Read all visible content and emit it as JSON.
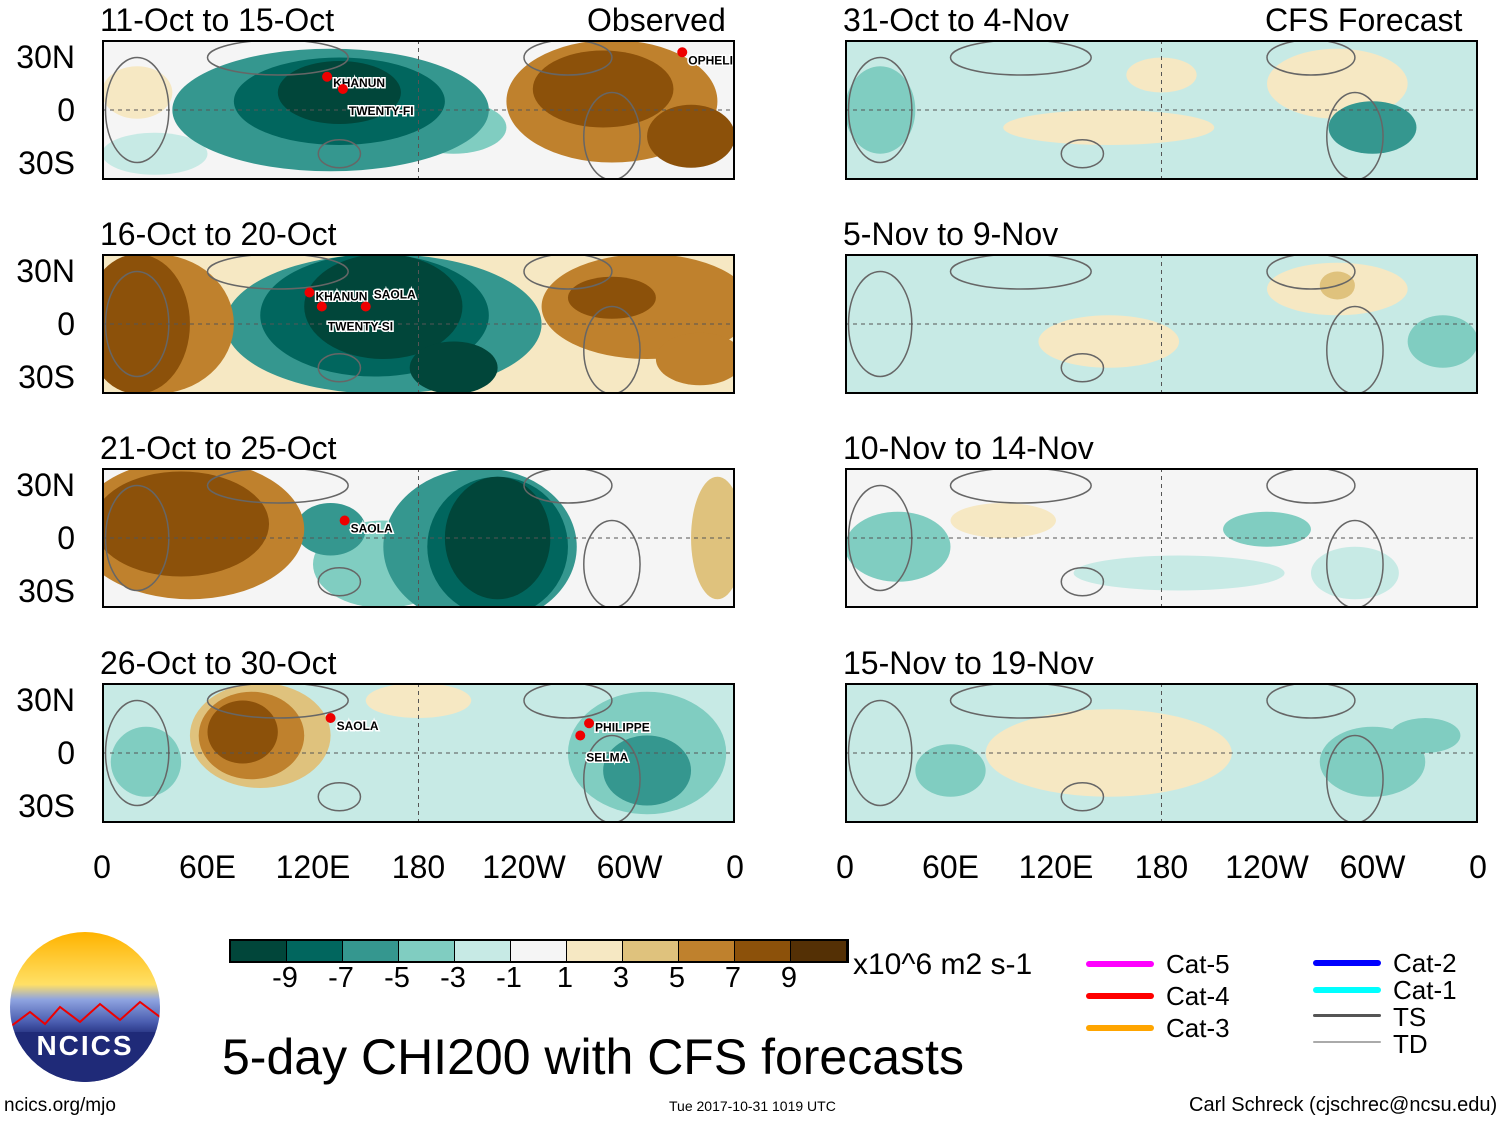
{
  "header": {
    "observed_label": "Observed",
    "forecast_label": "CFS Forecast"
  },
  "lat_labels": [
    "30N",
    "0",
    "30S"
  ],
  "lon_labels": [
    "0",
    "60E",
    "120E",
    "180",
    "120W",
    "60W",
    "0"
  ],
  "colorbar": {
    "labels": [
      "-9",
      "-7",
      "-5",
      "-3",
      "-1",
      "1",
      "3",
      "5",
      "7",
      "9"
    ],
    "units": "x10^6 m2 s-1",
    "colors": [
      "#01463a",
      "#01665e",
      "#35978f",
      "#80cdc1",
      "#c7eae5",
      "#f5f5f5",
      "#f6e8c3",
      "#dfc27d",
      "#bf812d",
      "#8c510a",
      "#543005"
    ]
  },
  "legend": [
    {
      "label": "Cat-5",
      "color": "#ff00ff"
    },
    {
      "label": "Cat-4",
      "color": "#ff0000"
    },
    {
      "label": "Cat-3",
      "color": "#ffa500"
    },
    {
      "label": "Cat-2",
      "color": "#0000ff"
    },
    {
      "label": "Cat-1",
      "color": "#00ffff"
    },
    {
      "label": "TS",
      "color": "#555555"
    },
    {
      "label": "TD",
      "color": "#aaaaaa"
    }
  ],
  "title": "5-day CHI200 with CFS forecasts",
  "logo_text": "NCICS",
  "footer": {
    "url": "ncics.org/mjo",
    "timestamp": "Tue 2017-10-31 1019 UTC",
    "credit": "Carl Schreck (cjschrec@ncsu.edu)"
  },
  "chart_data": {
    "type": "heatmap",
    "levels": [
      -9,
      -7,
      -5,
      -3,
      -1,
      1,
      3,
      5,
      7,
      9
    ],
    "panels": [
      {
        "title": "11-Oct to 15-Oct",
        "kind": "observed",
        "bg": 1,
        "storms": [
          {
            "name": "KHANUN",
            "lon": 128,
            "lat": 19
          },
          {
            "name": "TWENTY-FI",
            "lon": 137,
            "lat": 12
          },
          {
            "name": "OPHELIA",
            "lon": 330,
            "lat": 33
          }
        ],
        "blobs": [
          [
            30,
            -25,
            30,
            12,
            -1
          ],
          [
            130,
            0,
            90,
            35,
            -5
          ],
          [
            135,
            5,
            60,
            25,
            -7
          ],
          [
            135,
            10,
            35,
            18,
            -9
          ],
          [
            200,
            -10,
            30,
            15,
            -3
          ],
          [
            290,
            5,
            60,
            35,
            7
          ],
          [
            285,
            12,
            40,
            22,
            9
          ],
          [
            335,
            -15,
            25,
            18,
            9
          ],
          [
            20,
            10,
            20,
            15,
            3
          ]
        ]
      },
      {
        "title": "16-Oct to 20-Oct",
        "kind": "observed",
        "bg": 3,
        "storms": [
          {
            "name": "KHANUN",
            "lon": 118,
            "lat": 18
          },
          {
            "name": "TWENTY-SI",
            "lon": 125,
            "lat": 10
          },
          {
            "name": "SAOLA",
            "lon": 150,
            "lat": 10
          }
        ],
        "blobs": [
          [
            30,
            0,
            45,
            40,
            7
          ],
          [
            20,
            0,
            30,
            40,
            9
          ],
          [
            160,
            0,
            90,
            40,
            -5
          ],
          [
            155,
            5,
            65,
            35,
            -7
          ],
          [
            160,
            10,
            45,
            30,
            -9
          ],
          [
            200,
            -25,
            25,
            15,
            -9
          ],
          [
            310,
            10,
            60,
            30,
            7
          ],
          [
            290,
            15,
            25,
            12,
            9
          ],
          [
            340,
            -20,
            25,
            15,
            7
          ]
        ]
      },
      {
        "title": "21-Oct to 25-Oct",
        "kind": "observed",
        "bg": 1,
        "storms": [
          {
            "name": "SAOLA",
            "lon": 138,
            "lat": 10
          }
        ],
        "blobs": [
          [
            50,
            5,
            65,
            40,
            7
          ],
          [
            45,
            8,
            50,
            30,
            9
          ],
          [
            160,
            -15,
            40,
            25,
            -3
          ],
          [
            215,
            -5,
            55,
            45,
            -5
          ],
          [
            225,
            -5,
            40,
            40,
            -7
          ],
          [
            225,
            0,
            30,
            35,
            -9
          ],
          [
            350,
            0,
            15,
            35,
            5
          ],
          [
            130,
            5,
            20,
            15,
            -5
          ]
        ]
      },
      {
        "title": "26-Oct to 30-Oct",
        "kind": "observed",
        "bg": -1,
        "storms": [
          {
            "name": "SAOLA",
            "lon": 130,
            "lat": 20
          },
          {
            "name": "PHILIPPE",
            "lon": 277,
            "lat": 17
          },
          {
            "name": "SELMA",
            "lon": 272,
            "lat": 10
          }
        ],
        "blobs": [
          [
            90,
            10,
            40,
            30,
            5
          ],
          [
            85,
            10,
            30,
            25,
            7
          ],
          [
            80,
            12,
            20,
            18,
            9
          ],
          [
            310,
            0,
            45,
            35,
            -3
          ],
          [
            310,
            -10,
            25,
            20,
            -5
          ],
          [
            180,
            30,
            30,
            10,
            3
          ],
          [
            25,
            -5,
            20,
            20,
            -3
          ]
        ]
      },
      {
        "title": "31-Oct to 4-Nov",
        "kind": "forecast",
        "bg": -1,
        "storms": [],
        "blobs": [
          [
            20,
            0,
            20,
            25,
            -3
          ],
          [
            150,
            -10,
            60,
            10,
            3
          ],
          [
            280,
            15,
            40,
            20,
            3
          ],
          [
            300,
            -10,
            25,
            15,
            -5
          ],
          [
            180,
            20,
            20,
            10,
            3
          ]
        ]
      },
      {
        "title": "5-Nov to 9-Nov",
        "kind": "forecast",
        "bg": -1,
        "storms": [],
        "blobs": [
          [
            280,
            20,
            40,
            15,
            3
          ],
          [
            280,
            22,
            10,
            8,
            5
          ],
          [
            150,
            -10,
            40,
            15,
            3
          ],
          [
            340,
            -10,
            20,
            15,
            -3
          ]
        ]
      },
      {
        "title": "10-Nov to 14-Nov",
        "kind": "forecast",
        "bg": 1,
        "storms": [],
        "blobs": [
          [
            30,
            -5,
            30,
            20,
            -3
          ],
          [
            240,
            5,
            25,
            10,
            -3
          ],
          [
            190,
            -20,
            60,
            10,
            -1
          ],
          [
            290,
            -20,
            25,
            15,
            -1
          ],
          [
            90,
            10,
            30,
            10,
            3
          ]
        ]
      },
      {
        "title": "15-Nov to 19-Nov",
        "kind": "forecast",
        "bg": -1,
        "storms": [],
        "blobs": [
          [
            150,
            0,
            70,
            25,
            3
          ],
          [
            300,
            -5,
            30,
            20,
            -3
          ],
          [
            60,
            -10,
            20,
            15,
            -3
          ],
          [
            330,
            10,
            20,
            10,
            -3
          ]
        ]
      }
    ]
  }
}
